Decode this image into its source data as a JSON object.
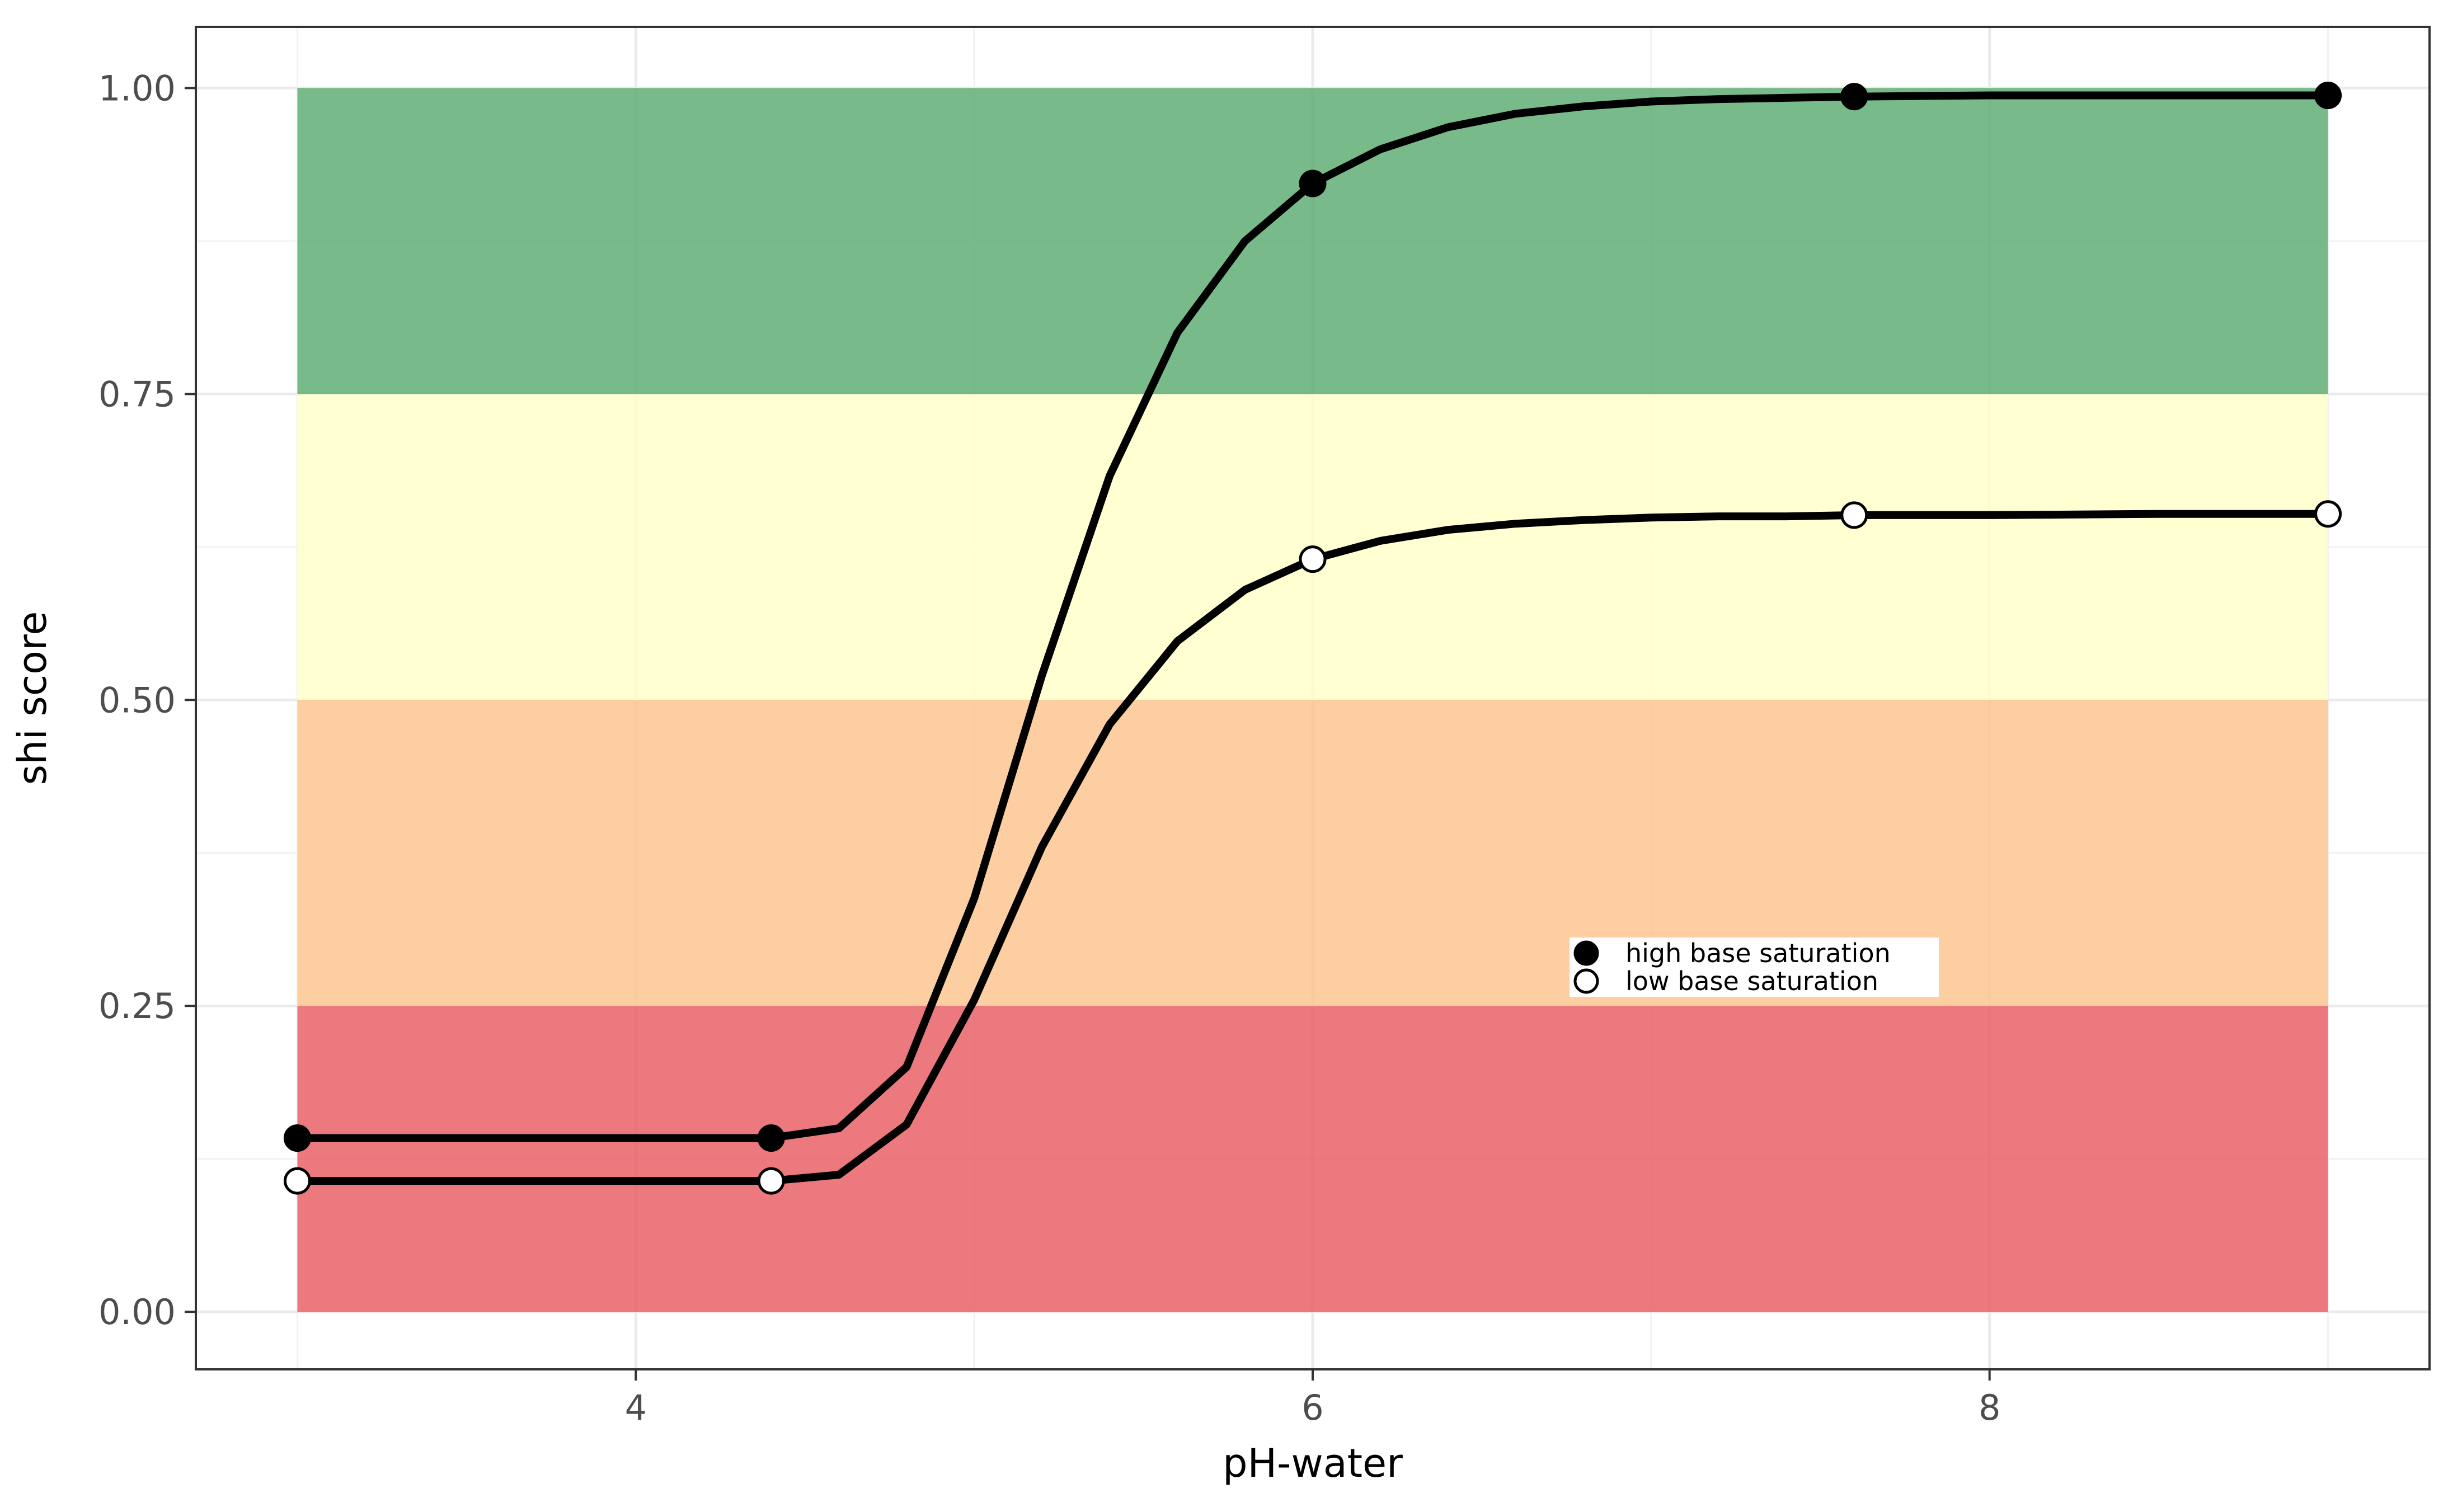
{
  "chart_data": {
    "type": "line",
    "xlabel": "pH-water",
    "ylabel": "shi score",
    "xlim": [
      2.7,
      9.3
    ],
    "ylim": [
      -0.047,
      1.05
    ],
    "x_ticks": [
      4,
      6,
      8
    ],
    "x_tick_labels": [
      "4",
      "6",
      "8"
    ],
    "y_ticks": [
      0,
      0.25,
      0.5,
      0.75,
      1
    ],
    "y_tick_labels": [
      "0.00",
      "0.25",
      "0.50",
      "0.75",
      "1.00"
    ],
    "grid": true,
    "legend_position": "inside-center-right",
    "bands": [
      {
        "y0": 0.0,
        "y1": 0.25,
        "color": "#e7585d"
      },
      {
        "y0": 0.25,
        "y1": 0.5,
        "color": "#fdc28b"
      },
      {
        "y0": 0.5,
        "y1": 0.75,
        "color": "#ffffc6"
      },
      {
        "y0": 0.75,
        "y1": 1.0,
        "color": "#58a96d"
      }
    ],
    "series": [
      {
        "name": "high base saturation",
        "marker": "filled",
        "x": [
          3.0,
          4.4,
          4.6,
          4.8,
          5.0,
          5.2,
          5.4,
          5.6,
          5.8,
          6.0,
          6.2,
          6.4,
          6.6,
          6.8,
          7.0,
          7.2,
          7.4,
          7.6,
          8.0,
          8.5,
          9.0
        ],
        "values": [
          0.142,
          0.142,
          0.15,
          0.2,
          0.338,
          0.52,
          0.683,
          0.8,
          0.875,
          0.922,
          0.95,
          0.968,
          0.979,
          0.985,
          0.989,
          0.991,
          0.992,
          0.993,
          0.994,
          0.994,
          0.994
        ],
        "markers_x": [
          3.0,
          4.4,
          6.0,
          7.6,
          9.0
        ],
        "markers_y": [
          0.142,
          0.142,
          0.922,
          0.993,
          0.994
        ]
      },
      {
        "name": "low base saturation",
        "marker": "open",
        "x": [
          3.0,
          4.4,
          4.6,
          4.8,
          5.0,
          5.2,
          5.4,
          5.6,
          5.8,
          6.0,
          6.2,
          6.4,
          6.6,
          6.8,
          7.0,
          7.2,
          7.4,
          7.6,
          8.0,
          8.5,
          9.0
        ],
        "values": [
          0.107,
          0.107,
          0.112,
          0.153,
          0.255,
          0.38,
          0.48,
          0.548,
          0.59,
          0.615,
          0.63,
          0.639,
          0.644,
          0.647,
          0.649,
          0.65,
          0.65,
          0.651,
          0.651,
          0.652,
          0.652
        ],
        "markers_x": [
          3.0,
          4.4,
          6.0,
          7.6,
          9.0
        ],
        "markers_y": [
          0.107,
          0.107,
          0.615,
          0.651,
          0.652
        ]
      }
    ]
  }
}
